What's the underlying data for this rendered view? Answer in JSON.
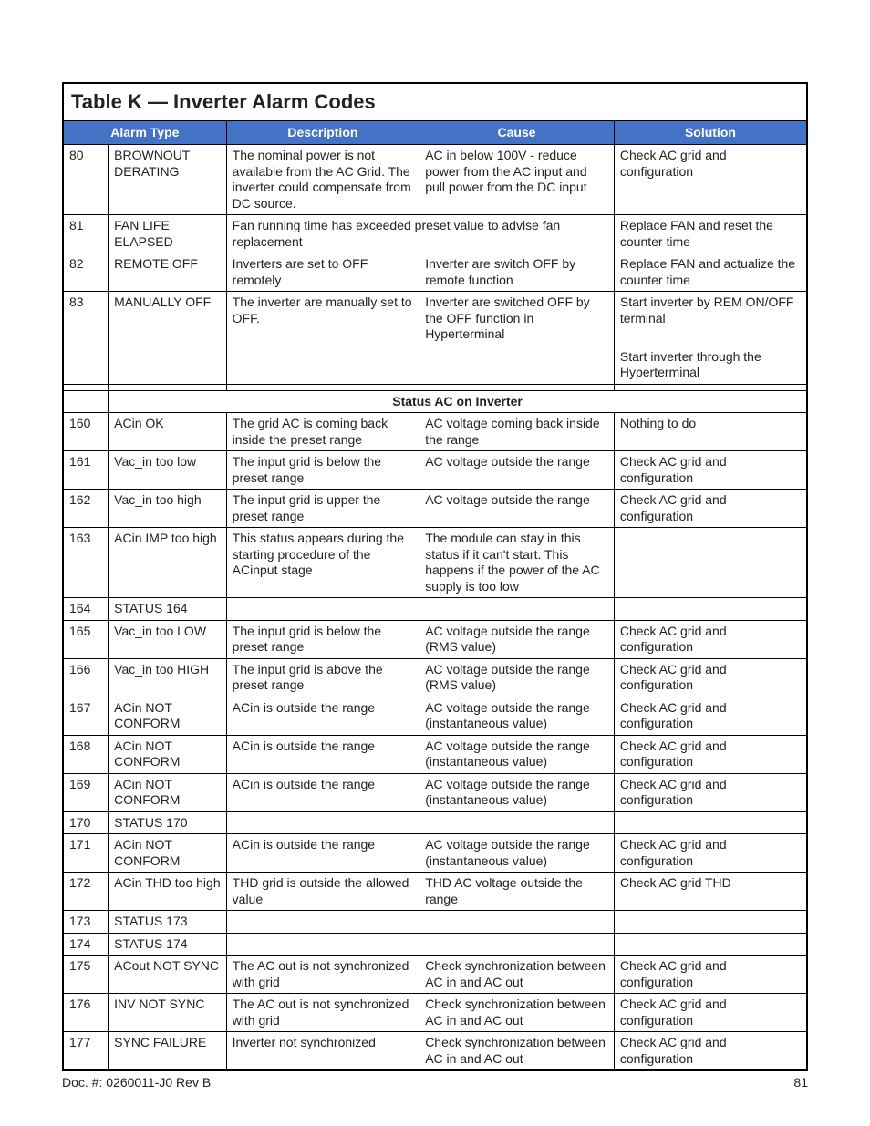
{
  "colors": {
    "header_bg": "#4472c4",
    "header_fg": "#ffffff",
    "page_bg": "#ffffff",
    "text": "#222222",
    "border": "#000000"
  },
  "table": {
    "title": "Table K  —  Inverter Alarm Codes",
    "columns": {
      "alarm_type": "Alarm Type",
      "description": "Description",
      "cause": "Cause",
      "solution": "Solution"
    },
    "section_header": "Status AC on Inverter",
    "rows_top": [
      {
        "code": "80",
        "type": "BROWNOUT DERATING",
        "desc": "The nominal power is not available from the AC Grid. The inverter could compensate from DC source.",
        "cause": "AC in below 100V -  reduce power from the AC input and pull power from the DC input",
        "sol": "Check AC grid and configuration"
      },
      {
        "code": "81",
        "type": "FAN LIFE ELAPSED",
        "desc_cause": "Fan running time has exceeded preset value to advise fan replacement",
        "sol": "Replace FAN and reset the counter time"
      },
      {
        "code": "82",
        "type": "REMOTE OFF",
        "desc": "Inverters are set to OFF remotely",
        "cause": "Inverter are switch OFF by remote function",
        "sol": "Replace FAN and actualize the counter time"
      },
      {
        "code": "83",
        "type": "MANUALLY OFF",
        "desc": "The inverter are manually set to OFF.",
        "cause": "Inverter are switched OFF by the OFF function in Hyperterminal",
        "sol": "Start inverter by REM ON/OFF terminal"
      },
      {
        "code": "",
        "type": "",
        "desc": "",
        "cause": "",
        "sol": "Start inverter through the Hyperterminal"
      },
      {
        "code": "",
        "type": "",
        "desc": "",
        "cause": "",
        "sol": ""
      }
    ],
    "rows_bottom": [
      {
        "code": "160",
        "type": "ACin OK",
        "desc": "The grid AC is coming back inside the preset range",
        "cause": "AC voltage coming back inside the range",
        "sol": "Nothing to do"
      },
      {
        "code": "161",
        "type": "Vac_in too low",
        "desc": "The input grid is below the preset range",
        "cause": "AC voltage outside the range",
        "sol": "Check AC grid and configuration"
      },
      {
        "code": "162",
        "type": "Vac_in too high",
        "desc": "The input grid is upper the preset range",
        "cause": "AC voltage outside the range",
        "sol": "Check AC grid and configuration"
      },
      {
        "code": "163",
        "type": "ACin IMP too high",
        "desc": "This status appears during the starting procedure of the ACinput stage",
        "cause": "The module can stay in this status if it can't start. This happens if the power of the AC supply is too low",
        "sol": ""
      },
      {
        "code": "164",
        "type": "STATUS 164",
        "desc": "",
        "cause": "",
        "sol": ""
      },
      {
        "code": "165",
        "type": "Vac_in too LOW",
        "desc": "The input grid is below the preset range",
        "cause": "AC voltage outside the range (RMS value)",
        "sol": "Check AC grid and configuration"
      },
      {
        "code": "166",
        "type": "Vac_in too HIGH",
        "desc": "The input grid is above the preset range",
        "cause": "AC voltage outside the range (RMS value)",
        "sol": "Check AC grid and configuration"
      },
      {
        "code": "167",
        "type": "ACin NOT CONFORM",
        "desc": "ACin is outside the range",
        "cause": "AC voltage outside the range (instantaneous value)",
        "sol": "Check AC grid and configuration"
      },
      {
        "code": "168",
        "type": "ACin NOT CONFORM",
        "desc": "ACin is outside the range",
        "cause": "AC voltage outside the range (instantaneous value)",
        "sol": "Check AC grid and configuration"
      },
      {
        "code": "169",
        "type": "ACin NOT CONFORM",
        "desc": "ACin is outside the range",
        "cause": "AC voltage outside the range (instantaneous value)",
        "sol": "Check AC grid and configuration"
      },
      {
        "code": "170",
        "type": "STATUS 170",
        "desc": "",
        "cause": "",
        "sol": ""
      },
      {
        "code": "171",
        "type": "ACin NOT CONFORM",
        "desc": "ACin is outside the range",
        "cause": "AC voltage outside the range (instantaneous value)",
        "sol": "Check AC grid and configuration"
      },
      {
        "code": "172",
        "type": "ACin THD too high",
        "desc": "THD grid is outside the allowed value",
        "cause": "THD AC voltage outside the range",
        "sol": "Check AC grid THD"
      },
      {
        "code": "173",
        "type": "STATUS 173",
        "desc": "",
        "cause": "",
        "sol": ""
      },
      {
        "code": "174",
        "type": "STATUS 174",
        "desc": "",
        "cause": "",
        "sol": ""
      },
      {
        "code": "175",
        "type": "ACout NOT SYNC",
        "desc": "The AC out is not synchronized with grid",
        "cause": "Check synchronization between AC in and AC out",
        "sol": "Check AC grid and configuration"
      },
      {
        "code": "176",
        "type": "INV NOT SYNC",
        "desc": "The AC out is not synchronized with grid",
        "cause": "Check synchronization between AC in and AC out",
        "sol": "Check AC grid and configuration"
      },
      {
        "code": "177",
        "type": "SYNC FAILURE",
        "desc": "Inverter not synchronized",
        "cause": "Check synchronization between AC in and AC out",
        "sol": "Check AC grid and configuration"
      }
    ]
  },
  "footer": {
    "doc": "Doc. #: 0260011-J0    Rev B",
    "page": "81"
  }
}
